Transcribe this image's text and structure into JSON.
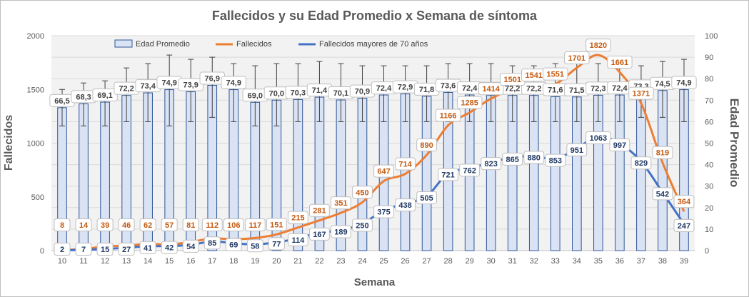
{
  "chart_data": {
    "type": "bar",
    "title": "Fallecidos y su Edad Promedio  x Semana de síntoma",
    "xlabel": "Semana",
    "ylabel": "Fallecidos",
    "y2label": "Edad Promedio",
    "ylim": [
      0,
      2000
    ],
    "y2lim": [
      0,
      100
    ],
    "yticks": [
      0,
      500,
      1000,
      1500,
      2000
    ],
    "y2ticks": [
      0,
      10,
      20,
      30,
      40,
      50,
      60,
      70,
      80,
      90,
      100
    ],
    "grid": true,
    "legend_position": "top",
    "categories": [
      "10",
      "11",
      "12",
      "13",
      "14",
      "15",
      "16",
      "17",
      "18",
      "19",
      "20",
      "21",
      "22",
      "23",
      "24",
      "25",
      "26",
      "27",
      "28",
      "29",
      "30",
      "31",
      "32",
      "33",
      "34",
      "35",
      "36",
      "37",
      "38",
      "39"
    ],
    "series": [
      {
        "name": "Edad Promedio",
        "type": "bar",
        "axis": "right",
        "color": "#dae3f3",
        "border_color": "#2f5597",
        "values": [
          66.5,
          68.3,
          69.1,
          72.2,
          73.4,
          74.9,
          73.9,
          76.9,
          74.9,
          69.0,
          70.0,
          70.3,
          71.4,
          70.1,
          70.9,
          72.4,
          72.9,
          71.8,
          73.6,
          72.4,
          72.2,
          72.2,
          72.2,
          71.6,
          71.5,
          72.3,
          72.4,
          73.3,
          74.5,
          74.9
        ],
        "labels": [
          "66,5",
          "68,3",
          "69,1",
          "72,2",
          "73,4",
          "74,9",
          "73,9",
          "76,9",
          "74,9",
          "69,0",
          "70,0",
          "70,3",
          "71,4",
          "70,1",
          "70,9",
          "72,4",
          "72,9",
          "71,8",
          "73,6",
          "72,4",
          "72,2",
          "72,2",
          "72,2",
          "71,6",
          "71,5",
          "72,3",
          "72,4",
          "73,3",
          "74,5",
          "74,9"
        ],
        "error_upper": [
          75,
          78,
          79,
          85,
          87,
          91,
          89,
          90,
          87,
          86,
          87,
          87,
          88,
          87,
          86,
          86,
          86,
          86,
          87,
          87,
          87,
          86,
          86,
          87,
          87,
          87,
          88,
          86,
          88,
          89
        ],
        "error_lower": [
          58,
          58,
          58,
          60,
          60,
          58,
          60,
          62,
          60,
          58,
          58,
          60,
          60,
          60,
          60,
          60,
          60,
          60,
          60,
          60,
          60,
          60,
          60,
          60,
          60,
          60,
          60,
          62,
          62,
          60
        ]
      },
      {
        "name": "Fallecidos",
        "type": "line",
        "axis": "left",
        "color": "#ed7d31",
        "values": [
          8,
          14,
          39,
          46,
          62,
          57,
          81,
          112,
          106,
          117,
          151,
          215,
          281,
          351,
          450,
          647,
          714,
          890,
          1166,
          1285,
          1414,
          1501,
          1541,
          1551,
          1701,
          1820,
          1661,
          1371,
          819,
          364
        ]
      },
      {
        "name": "Fallecidos mayores de 70 años",
        "type": "line",
        "axis": "left",
        "color": "#4472c4",
        "values": [
          2,
          7,
          15,
          27,
          41,
          42,
          54,
          85,
          69,
          58,
          77,
          114,
          167,
          189,
          250,
          375,
          438,
          505,
          721,
          762,
          823,
          865,
          880,
          853,
          951,
          1063,
          997,
          829,
          542,
          247
        ]
      }
    ]
  }
}
